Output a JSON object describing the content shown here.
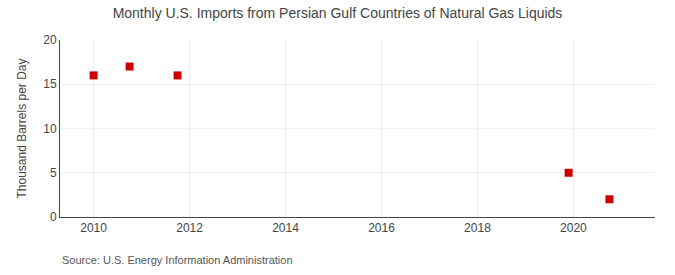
{
  "chart_data": {
    "type": "scatter",
    "title": "Monthly U.S. Imports from Persian Gulf Countries of Natural Gas Liquids",
    "ylabel": "Thousand Barrels per Day",
    "annotations": [
      "Source: U.S. Energy Information Administration"
    ],
    "x": [
      2010.0,
      2010.75,
      2011.75,
      2019.9,
      2020.75
    ],
    "values": [
      16.0,
      17.0,
      16.0,
      5.0,
      2.0
    ],
    "color": "#cc0000",
    "marker": "square",
    "xlim": [
      2009.3,
      2021.7
    ],
    "ylim": [
      0,
      20
    ],
    "xticks": [
      2010,
      2012,
      2014,
      2016,
      2018,
      2020
    ],
    "yticks": [
      0,
      5,
      10,
      15,
      20
    ],
    "grid": true
  }
}
